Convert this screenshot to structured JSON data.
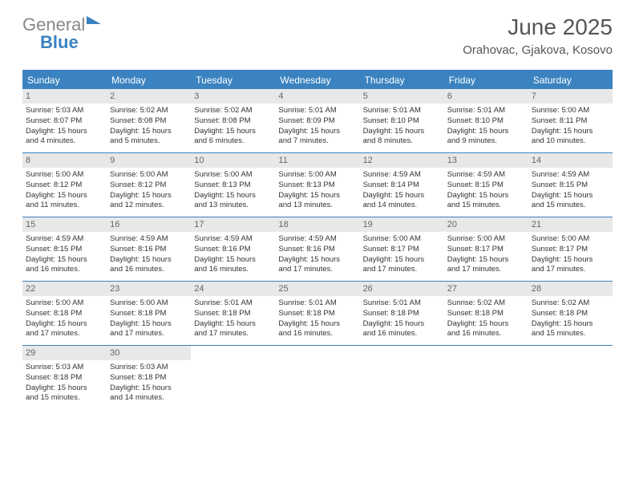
{
  "logo": {
    "part1": "General",
    "part2": "Blue"
  },
  "title": "June 2025",
  "location": "Orahovac, Gjakova, Kosovo",
  "colors": {
    "accent": "#3b83c0",
    "header_text": "#ffffff",
    "daynum_bg": "#e8e8e8",
    "text": "#333333",
    "muted": "#666666"
  },
  "day_headers": [
    "Sunday",
    "Monday",
    "Tuesday",
    "Wednesday",
    "Thursday",
    "Friday",
    "Saturday"
  ],
  "weeks": [
    [
      {
        "n": "1",
        "sr": "Sunrise: 5:03 AM",
        "ss": "Sunset: 8:07 PM",
        "d1": "Daylight: 15 hours",
        "d2": "and 4 minutes."
      },
      {
        "n": "2",
        "sr": "Sunrise: 5:02 AM",
        "ss": "Sunset: 8:08 PM",
        "d1": "Daylight: 15 hours",
        "d2": "and 5 minutes."
      },
      {
        "n": "3",
        "sr": "Sunrise: 5:02 AM",
        "ss": "Sunset: 8:08 PM",
        "d1": "Daylight: 15 hours",
        "d2": "and 6 minutes."
      },
      {
        "n": "4",
        "sr": "Sunrise: 5:01 AM",
        "ss": "Sunset: 8:09 PM",
        "d1": "Daylight: 15 hours",
        "d2": "and 7 minutes."
      },
      {
        "n": "5",
        "sr": "Sunrise: 5:01 AM",
        "ss": "Sunset: 8:10 PM",
        "d1": "Daylight: 15 hours",
        "d2": "and 8 minutes."
      },
      {
        "n": "6",
        "sr": "Sunrise: 5:01 AM",
        "ss": "Sunset: 8:10 PM",
        "d1": "Daylight: 15 hours",
        "d2": "and 9 minutes."
      },
      {
        "n": "7",
        "sr": "Sunrise: 5:00 AM",
        "ss": "Sunset: 8:11 PM",
        "d1": "Daylight: 15 hours",
        "d2": "and 10 minutes."
      }
    ],
    [
      {
        "n": "8",
        "sr": "Sunrise: 5:00 AM",
        "ss": "Sunset: 8:12 PM",
        "d1": "Daylight: 15 hours",
        "d2": "and 11 minutes."
      },
      {
        "n": "9",
        "sr": "Sunrise: 5:00 AM",
        "ss": "Sunset: 8:12 PM",
        "d1": "Daylight: 15 hours",
        "d2": "and 12 minutes."
      },
      {
        "n": "10",
        "sr": "Sunrise: 5:00 AM",
        "ss": "Sunset: 8:13 PM",
        "d1": "Daylight: 15 hours",
        "d2": "and 13 minutes."
      },
      {
        "n": "11",
        "sr": "Sunrise: 5:00 AM",
        "ss": "Sunset: 8:13 PM",
        "d1": "Daylight: 15 hours",
        "d2": "and 13 minutes."
      },
      {
        "n": "12",
        "sr": "Sunrise: 4:59 AM",
        "ss": "Sunset: 8:14 PM",
        "d1": "Daylight: 15 hours",
        "d2": "and 14 minutes."
      },
      {
        "n": "13",
        "sr": "Sunrise: 4:59 AM",
        "ss": "Sunset: 8:15 PM",
        "d1": "Daylight: 15 hours",
        "d2": "and 15 minutes."
      },
      {
        "n": "14",
        "sr": "Sunrise: 4:59 AM",
        "ss": "Sunset: 8:15 PM",
        "d1": "Daylight: 15 hours",
        "d2": "and 15 minutes."
      }
    ],
    [
      {
        "n": "15",
        "sr": "Sunrise: 4:59 AM",
        "ss": "Sunset: 8:15 PM",
        "d1": "Daylight: 15 hours",
        "d2": "and 16 minutes."
      },
      {
        "n": "16",
        "sr": "Sunrise: 4:59 AM",
        "ss": "Sunset: 8:16 PM",
        "d1": "Daylight: 15 hours",
        "d2": "and 16 minutes."
      },
      {
        "n": "17",
        "sr": "Sunrise: 4:59 AM",
        "ss": "Sunset: 8:16 PM",
        "d1": "Daylight: 15 hours",
        "d2": "and 16 minutes."
      },
      {
        "n": "18",
        "sr": "Sunrise: 4:59 AM",
        "ss": "Sunset: 8:16 PM",
        "d1": "Daylight: 15 hours",
        "d2": "and 17 minutes."
      },
      {
        "n": "19",
        "sr": "Sunrise: 5:00 AM",
        "ss": "Sunset: 8:17 PM",
        "d1": "Daylight: 15 hours",
        "d2": "and 17 minutes."
      },
      {
        "n": "20",
        "sr": "Sunrise: 5:00 AM",
        "ss": "Sunset: 8:17 PM",
        "d1": "Daylight: 15 hours",
        "d2": "and 17 minutes."
      },
      {
        "n": "21",
        "sr": "Sunrise: 5:00 AM",
        "ss": "Sunset: 8:17 PM",
        "d1": "Daylight: 15 hours",
        "d2": "and 17 minutes."
      }
    ],
    [
      {
        "n": "22",
        "sr": "Sunrise: 5:00 AM",
        "ss": "Sunset: 8:18 PM",
        "d1": "Daylight: 15 hours",
        "d2": "and 17 minutes."
      },
      {
        "n": "23",
        "sr": "Sunrise: 5:00 AM",
        "ss": "Sunset: 8:18 PM",
        "d1": "Daylight: 15 hours",
        "d2": "and 17 minutes."
      },
      {
        "n": "24",
        "sr": "Sunrise: 5:01 AM",
        "ss": "Sunset: 8:18 PM",
        "d1": "Daylight: 15 hours",
        "d2": "and 17 minutes."
      },
      {
        "n": "25",
        "sr": "Sunrise: 5:01 AM",
        "ss": "Sunset: 8:18 PM",
        "d1": "Daylight: 15 hours",
        "d2": "and 16 minutes."
      },
      {
        "n": "26",
        "sr": "Sunrise: 5:01 AM",
        "ss": "Sunset: 8:18 PM",
        "d1": "Daylight: 15 hours",
        "d2": "and 16 minutes."
      },
      {
        "n": "27",
        "sr": "Sunrise: 5:02 AM",
        "ss": "Sunset: 8:18 PM",
        "d1": "Daylight: 15 hours",
        "d2": "and 16 minutes."
      },
      {
        "n": "28",
        "sr": "Sunrise: 5:02 AM",
        "ss": "Sunset: 8:18 PM",
        "d1": "Daylight: 15 hours",
        "d2": "and 15 minutes."
      }
    ],
    [
      {
        "n": "29",
        "sr": "Sunrise: 5:03 AM",
        "ss": "Sunset: 8:18 PM",
        "d1": "Daylight: 15 hours",
        "d2": "and 15 minutes."
      },
      {
        "n": "30",
        "sr": "Sunrise: 5:03 AM",
        "ss": "Sunset: 8:18 PM",
        "d1": "Daylight: 15 hours",
        "d2": "and 14 minutes."
      },
      null,
      null,
      null,
      null,
      null
    ]
  ]
}
